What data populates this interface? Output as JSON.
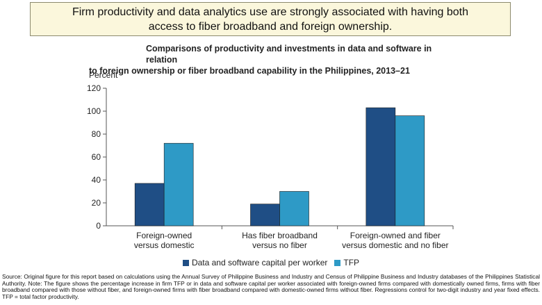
{
  "banner": {
    "text": "Firm productivity and data analytics use are strongly associated with having both access to fiber broadband and foreign ownership."
  },
  "chart_data": {
    "type": "bar",
    "title_line1": "Comparisons of productivity and investments in data and software in relation",
    "title_line2": "to foreign ownership or fiber broadband capability in the Philippines, 2013–21",
    "ylabel": "Percent",
    "ylim": [
      0,
      120
    ],
    "yticks": [
      0,
      20,
      40,
      60,
      80,
      100,
      120
    ],
    "categories": [
      [
        "Foreign-owned",
        "versus domestic"
      ],
      [
        "Has fiber broadband",
        "versus no fiber"
      ],
      [
        "Foreign-owned and fiber",
        "versus domestic and no fiber"
      ]
    ],
    "series": [
      {
        "name": "Data and software capital per worker",
        "color": "#1f4e85",
        "values": [
          37,
          19,
          103
        ]
      },
      {
        "name": "TFP",
        "color": "#2e9ac6",
        "values": [
          72,
          30,
          96
        ]
      }
    ],
    "grid": false,
    "legend_position": "bottom"
  },
  "footnote": "Source: Original figure for this report based on calculations using the Annual Survey of Philippine Business and Industry and Census of Philippine Business and Industry databases of the Philippines Statistical Authority. Note: The figure shows the percentage increase in firm TFP or in data and software capital per worker associated with foreign-owned firms compared with domestically owned firms, firms with fiber broadband compared with those without fiber, and foreign-owned firms with fiber broadband compared with domestic-owned firms without fiber. Regressions control for two-digit industry and year fixed effects. TFP = total factor productivity."
}
